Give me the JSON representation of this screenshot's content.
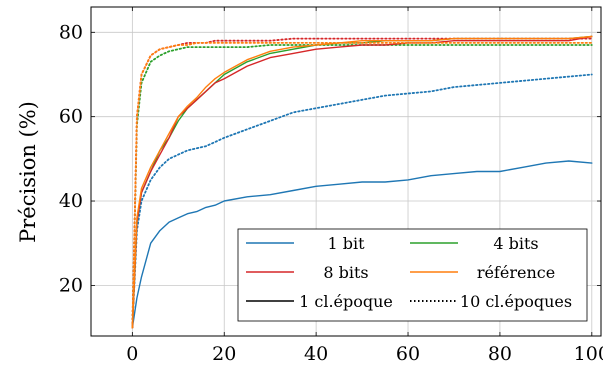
{
  "chart_data": {
    "type": "line",
    "title": "",
    "xlabel": "",
    "ylabel": "Précision (%)",
    "xlim": [
      -9,
      102
    ],
    "ylim": [
      8,
      86
    ],
    "xticks": [
      0,
      20,
      40,
      60,
      80,
      100
    ],
    "yticks": [
      20,
      40,
      60,
      80
    ],
    "grid": true,
    "legend_position": "bottom-right",
    "legend": [
      {
        "label": "1 bit",
        "color": "#1f77b4",
        "style": "solid"
      },
      {
        "label": "4 bits",
        "color": "#2ca02c",
        "style": "solid"
      },
      {
        "label": "8 bits",
        "color": "#d62728",
        "style": "solid"
      },
      {
        "label": "référence",
        "color": "#ff7f0e",
        "style": "solid"
      },
      {
        "label": "1 cl.époque",
        "color": "#000000",
        "style": "solid"
      },
      {
        "label": "10 cl.époques",
        "color": "#000000",
        "style": "dotted"
      }
    ],
    "series": [
      {
        "name": "1 bit",
        "legend_key": "1 bit / 1 cl.époque",
        "color": "#1f77b4",
        "style": "solid",
        "x": [
          0,
          1,
          2,
          4,
          6,
          8,
          10,
          12,
          14,
          16,
          18,
          20,
          25,
          30,
          35,
          40,
          45,
          50,
          55,
          60,
          65,
          70,
          75,
          80,
          85,
          90,
          95,
          100
        ],
        "y": [
          10,
          17,
          22,
          30,
          33,
          35,
          36,
          37,
          37.5,
          38.5,
          39,
          40,
          41,
          41.5,
          42.5,
          43.5,
          44,
          44.5,
          44.5,
          45,
          46,
          46.5,
          47,
          47,
          48,
          49,
          49.5,
          49
        ]
      },
      {
        "name": "1 bit",
        "legend_key": "1 bit / 10 cl.époques",
        "color": "#1f77b4",
        "style": "dotted",
        "x": [
          0,
          1,
          2,
          4,
          6,
          8,
          10,
          12,
          14,
          16,
          18,
          20,
          25,
          30,
          35,
          40,
          45,
          50,
          55,
          60,
          65,
          70,
          75,
          80,
          85,
          90,
          95,
          100
        ],
        "y": [
          10,
          33,
          40,
          45,
          48,
          50,
          51,
          52,
          52.5,
          53,
          54,
          55,
          57,
          59,
          61,
          62,
          63,
          64,
          65,
          65.5,
          66,
          67,
          67.5,
          68,
          68.5,
          69,
          69.5,
          70
        ]
      },
      {
        "name": "4 bits",
        "legend_key": "4 bits / 1 cl.époque",
        "color": "#2ca02c",
        "style": "solid",
        "x": [
          0,
          1,
          2,
          4,
          6,
          8,
          10,
          12,
          14,
          16,
          18,
          20,
          25,
          30,
          35,
          40,
          45,
          50,
          55,
          60,
          65,
          70,
          75,
          80,
          85,
          90,
          95,
          100
        ],
        "y": [
          10,
          35,
          42,
          47,
          52,
          55,
          59,
          62,
          64,
          66,
          68,
          70,
          73,
          75,
          76,
          77,
          77.5,
          77.5,
          78,
          78,
          78,
          78.5,
          78.5,
          78.5,
          78.5,
          78.5,
          78.5,
          79
        ]
      },
      {
        "name": "4 bits",
        "legend_key": "4 bits / 10 cl.époques",
        "color": "#2ca02c",
        "style": "dotted",
        "x": [
          0,
          1,
          2,
          4,
          6,
          8,
          10,
          12,
          14,
          16,
          18,
          20,
          25,
          30,
          35,
          40,
          45,
          50,
          55,
          60,
          65,
          70,
          75,
          80,
          85,
          90,
          95,
          100
        ],
        "y": [
          10,
          58,
          68,
          73,
          74.5,
          75.5,
          76,
          76.5,
          76.5,
          76.5,
          76.5,
          76.5,
          76.5,
          77,
          77,
          77,
          77,
          77,
          77,
          77,
          77,
          77,
          77,
          77,
          77,
          77,
          77,
          77
        ]
      },
      {
        "name": "8 bits",
        "legend_key": "8 bits / 1 cl.époque",
        "color": "#d62728",
        "style": "solid",
        "x": [
          0,
          1,
          2,
          4,
          6,
          8,
          10,
          12,
          14,
          16,
          18,
          20,
          25,
          30,
          35,
          40,
          45,
          50,
          55,
          60,
          65,
          70,
          75,
          80,
          85,
          90,
          95,
          100
        ],
        "y": [
          10,
          35,
          42,
          47,
          51,
          55,
          60,
          62,
          64,
          66,
          68,
          69,
          72,
          74,
          75,
          76,
          76.5,
          77,
          77,
          77.5,
          77.5,
          78,
          78,
          78,
          78,
          78,
          78,
          79
        ]
      },
      {
        "name": "8 bits",
        "legend_key": "8 bits / 10 cl.époques",
        "color": "#d62728",
        "style": "dotted",
        "x": [
          0,
          1,
          2,
          4,
          6,
          8,
          10,
          12,
          14,
          16,
          18,
          20,
          25,
          30,
          35,
          40,
          45,
          50,
          55,
          60,
          65,
          70,
          75,
          80,
          85,
          90,
          95,
          100
        ],
        "y": [
          10,
          60,
          70,
          74.5,
          76,
          76.5,
          77,
          77.5,
          77.5,
          77.5,
          78,
          78,
          78,
          78,
          78.5,
          78.5,
          78.5,
          78.5,
          78.5,
          78.5,
          78.5,
          78.5,
          78.5,
          78.5,
          78.5,
          78.5,
          78.5,
          78.5
        ]
      },
      {
        "name": "référence",
        "legend_key": "référence / 1 cl.époque",
        "color": "#ff7f0e",
        "style": "solid",
        "x": [
          0,
          1,
          2,
          4,
          6,
          8,
          10,
          12,
          14,
          16,
          18,
          20,
          25,
          30,
          35,
          40,
          45,
          50,
          55,
          60,
          65,
          70,
          75,
          80,
          85,
          90,
          95,
          100
        ],
        "y": [
          10,
          36,
          43,
          48,
          52,
          56,
          60,
          62.5,
          64.5,
          67,
          69,
          70.5,
          73.5,
          75.5,
          76.5,
          77,
          77.5,
          78,
          78,
          78,
          78,
          78.5,
          78.5,
          78.5,
          78.5,
          78.5,
          78.5,
          79
        ]
      },
      {
        "name": "référence",
        "legend_key": "référence / 10 cl.époques",
        "color": "#ff7f0e",
        "style": "dotted",
        "x": [
          0,
          1,
          2,
          4,
          6,
          8,
          10,
          12,
          14,
          16,
          18,
          20,
          25,
          30,
          35,
          40,
          45,
          50,
          55,
          60,
          65,
          70,
          75,
          80,
          85,
          90,
          95,
          100
        ],
        "y": [
          10,
          60,
          70,
          74.5,
          76,
          76.5,
          77,
          77,
          77.5,
          77.5,
          77.5,
          77.5,
          77.5,
          77.5,
          77.5,
          77.5,
          77.5,
          77.5,
          77.5,
          77.5,
          77.5,
          77.5,
          77.5,
          77.5,
          77.5,
          77.5,
          77.5,
          77.5
        ]
      }
    ]
  }
}
